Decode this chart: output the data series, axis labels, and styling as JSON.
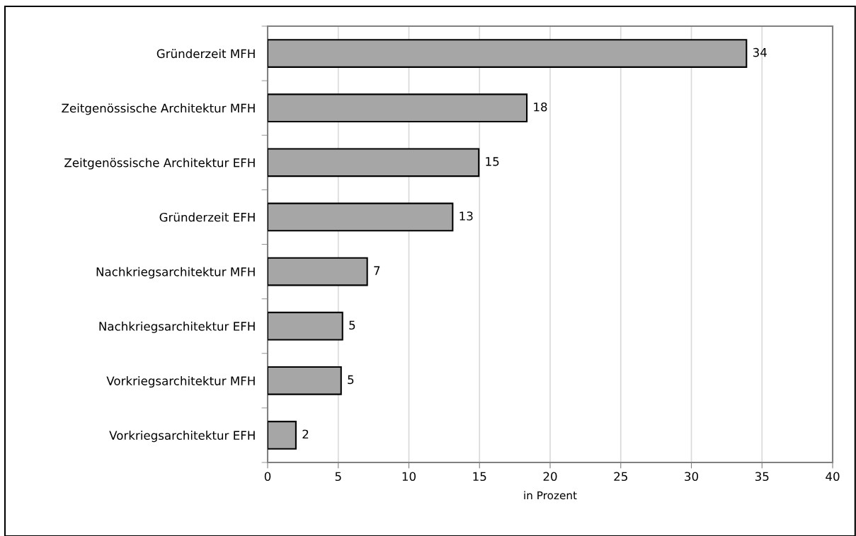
{
  "chart_data": {
    "type": "bar",
    "orientation": "horizontal",
    "xlabel": "in Prozent",
    "categories": [
      "Gründerzeit MFH",
      "Zeitgenössische Architektur MFH",
      "Zeitgenössische Architektur EFH",
      "Gründerzeit EFH",
      "Nachkriegsarchitektur MFH",
      "Nachkriegsarchitektur EFH",
      "Vorkriegsarchitektur MFH",
      "Vorkriegsarchitektur EFH"
    ],
    "values": [
      33.9,
      18.35,
      14.95,
      13.1,
      7.05,
      5.3,
      5.2,
      2.0
    ],
    "value_labels": [
      "34",
      "18",
      "15",
      "13",
      "7",
      "5",
      "5",
      "2"
    ],
    "color": "#a6a6a6",
    "xlim": [
      0,
      40
    ],
    "xticks": [
      0,
      5,
      10,
      15,
      20,
      25,
      30,
      35,
      40
    ],
    "grid": "x"
  }
}
